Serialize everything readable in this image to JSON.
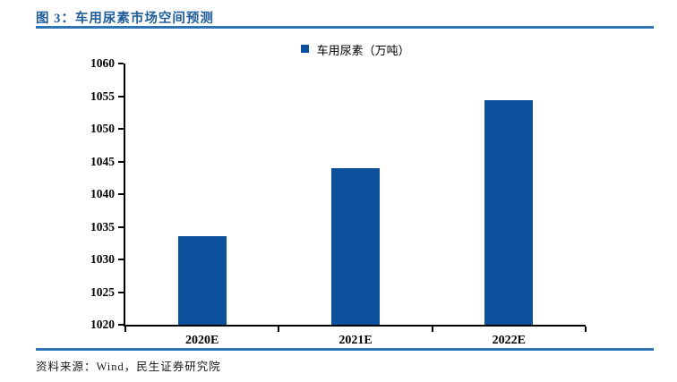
{
  "header": {
    "title": "图 3：车用尿素市场空间预测"
  },
  "footer": {
    "source": "资料来源：Wind，民生证券研究院"
  },
  "colors": {
    "title": "#1F5C99",
    "rule": "#2E75B6",
    "bar": "#0D509B",
    "axis": "#000000",
    "background": "#FFFFFF"
  },
  "chart_data": {
    "type": "bar",
    "title": "图 3：车用尿素市场空间预测",
    "legend": "车用尿素（万吨）",
    "legend_position": "top-center",
    "categories": [
      "2020E",
      "2021E",
      "2022E"
    ],
    "values": [
      1033.6,
      1044.0,
      1054.4
    ],
    "xlabel": "",
    "ylabel": "",
    "ylim": [
      1020,
      1060
    ],
    "ytick_step": 5,
    "grid": false,
    "bar_color": "#0D509B"
  }
}
